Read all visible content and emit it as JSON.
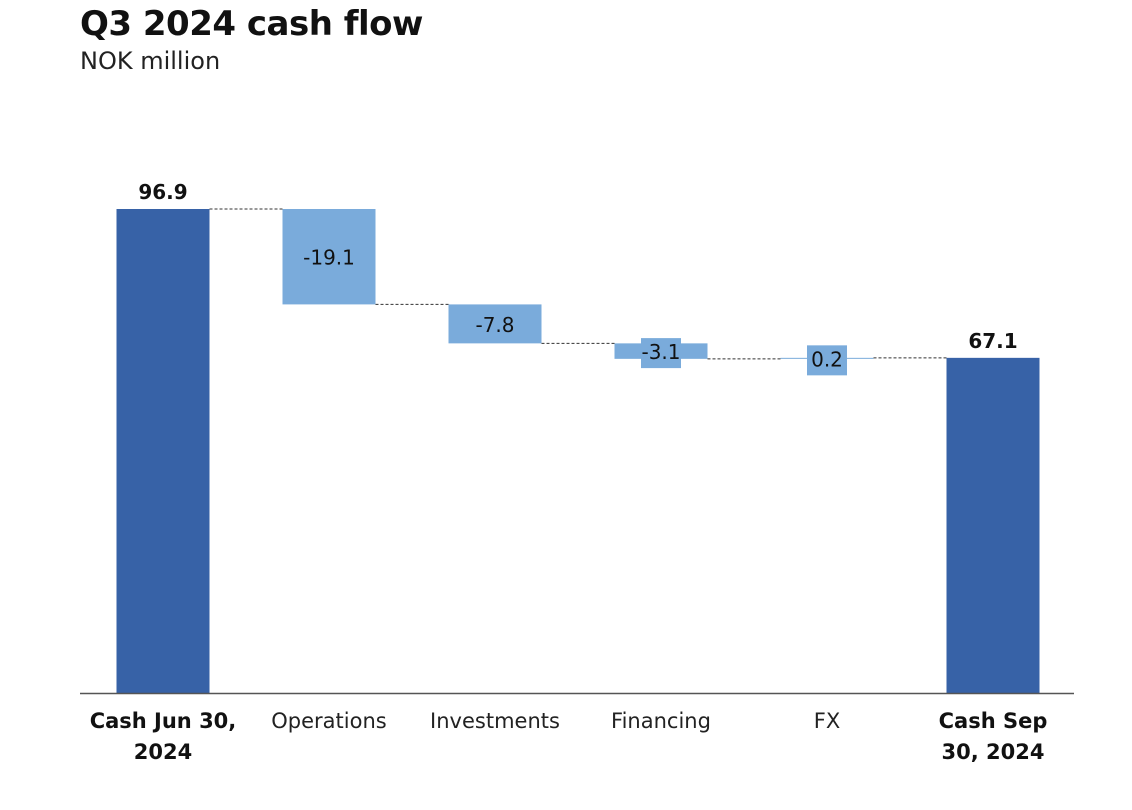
{
  "title": "Q3 2024 cash flow",
  "subtitle": "NOK million",
  "colors": {
    "total": "#3762a7",
    "delta": "#7aabdb",
    "axis": "#555555",
    "connector": "#333333"
  },
  "chart_data": {
    "type": "waterfall",
    "title": "Q3 2024 cash flow",
    "subtitle": "NOK million",
    "ylim": [
      0,
      96.9
    ],
    "grid": false,
    "items": [
      {
        "label_lines": [
          "Cash Jun 30,",
          "2024"
        ],
        "kind": "total",
        "value": 96.9,
        "value_label": "96.9"
      },
      {
        "label_lines": [
          "Operations"
        ],
        "kind": "delta",
        "value": -19.1,
        "value_label": "-19.1"
      },
      {
        "label_lines": [
          "Investments"
        ],
        "kind": "delta",
        "value": -7.8,
        "value_label": "-7.8"
      },
      {
        "label_lines": [
          "Financing"
        ],
        "kind": "delta",
        "value": -3.1,
        "value_label": "-3.1"
      },
      {
        "label_lines": [
          "FX"
        ],
        "kind": "delta",
        "value": 0.2,
        "value_label": "0.2"
      },
      {
        "label_lines": [
          "Cash Sep",
          "30, 2024"
        ],
        "kind": "total",
        "value": 67.1,
        "value_label": "67.1"
      }
    ]
  }
}
